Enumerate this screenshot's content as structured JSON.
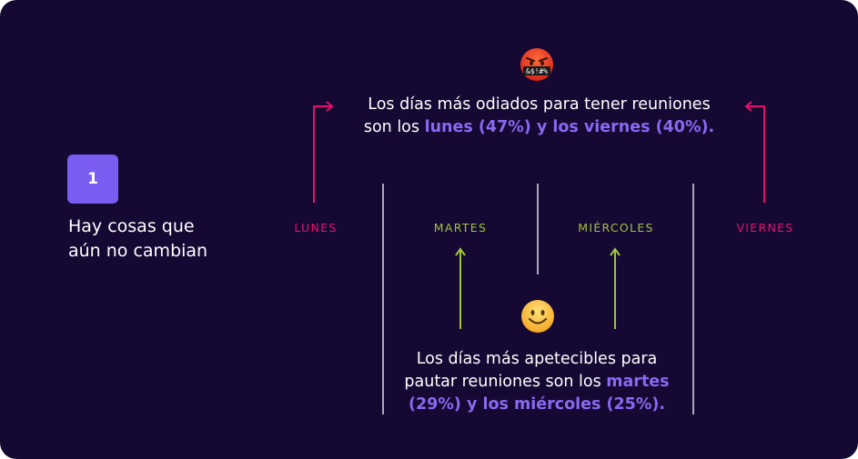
{
  "badge": {
    "number": "1"
  },
  "headline": {
    "line1": "Hay cosas que",
    "line2": "aún no cambian"
  },
  "days": {
    "lunes": "LUNES",
    "martes": "MARTES",
    "miercoles": "MIÉRCOLES",
    "viernes": "VIERNES"
  },
  "top_text": {
    "line1": "Los días más odiados para tener reuniones",
    "line2_prefix": "son los ",
    "line2_highlight": "lunes (47%) y los viernes (40%)."
  },
  "bottom_text": {
    "line1": "Los días más apetecibles para",
    "line2_prefix": "pautar reuniones son los ",
    "line2_highlight": "martes",
    "line3_highlight": "(29%) y los miércoles (25%)."
  },
  "angry_face": {
    "symbols": "&$!#%"
  },
  "colors": {
    "background": "#150833",
    "accent": "#7b5cf0",
    "highlight": "#8a68f2",
    "bad": "#e8106f",
    "good": "#9fc43a"
  },
  "icons": [
    "angry-face-icon",
    "smiling-face-icon",
    "arrow-up-icon",
    "arrow-up-right-icon",
    "arrow-up-left-icon"
  ]
}
